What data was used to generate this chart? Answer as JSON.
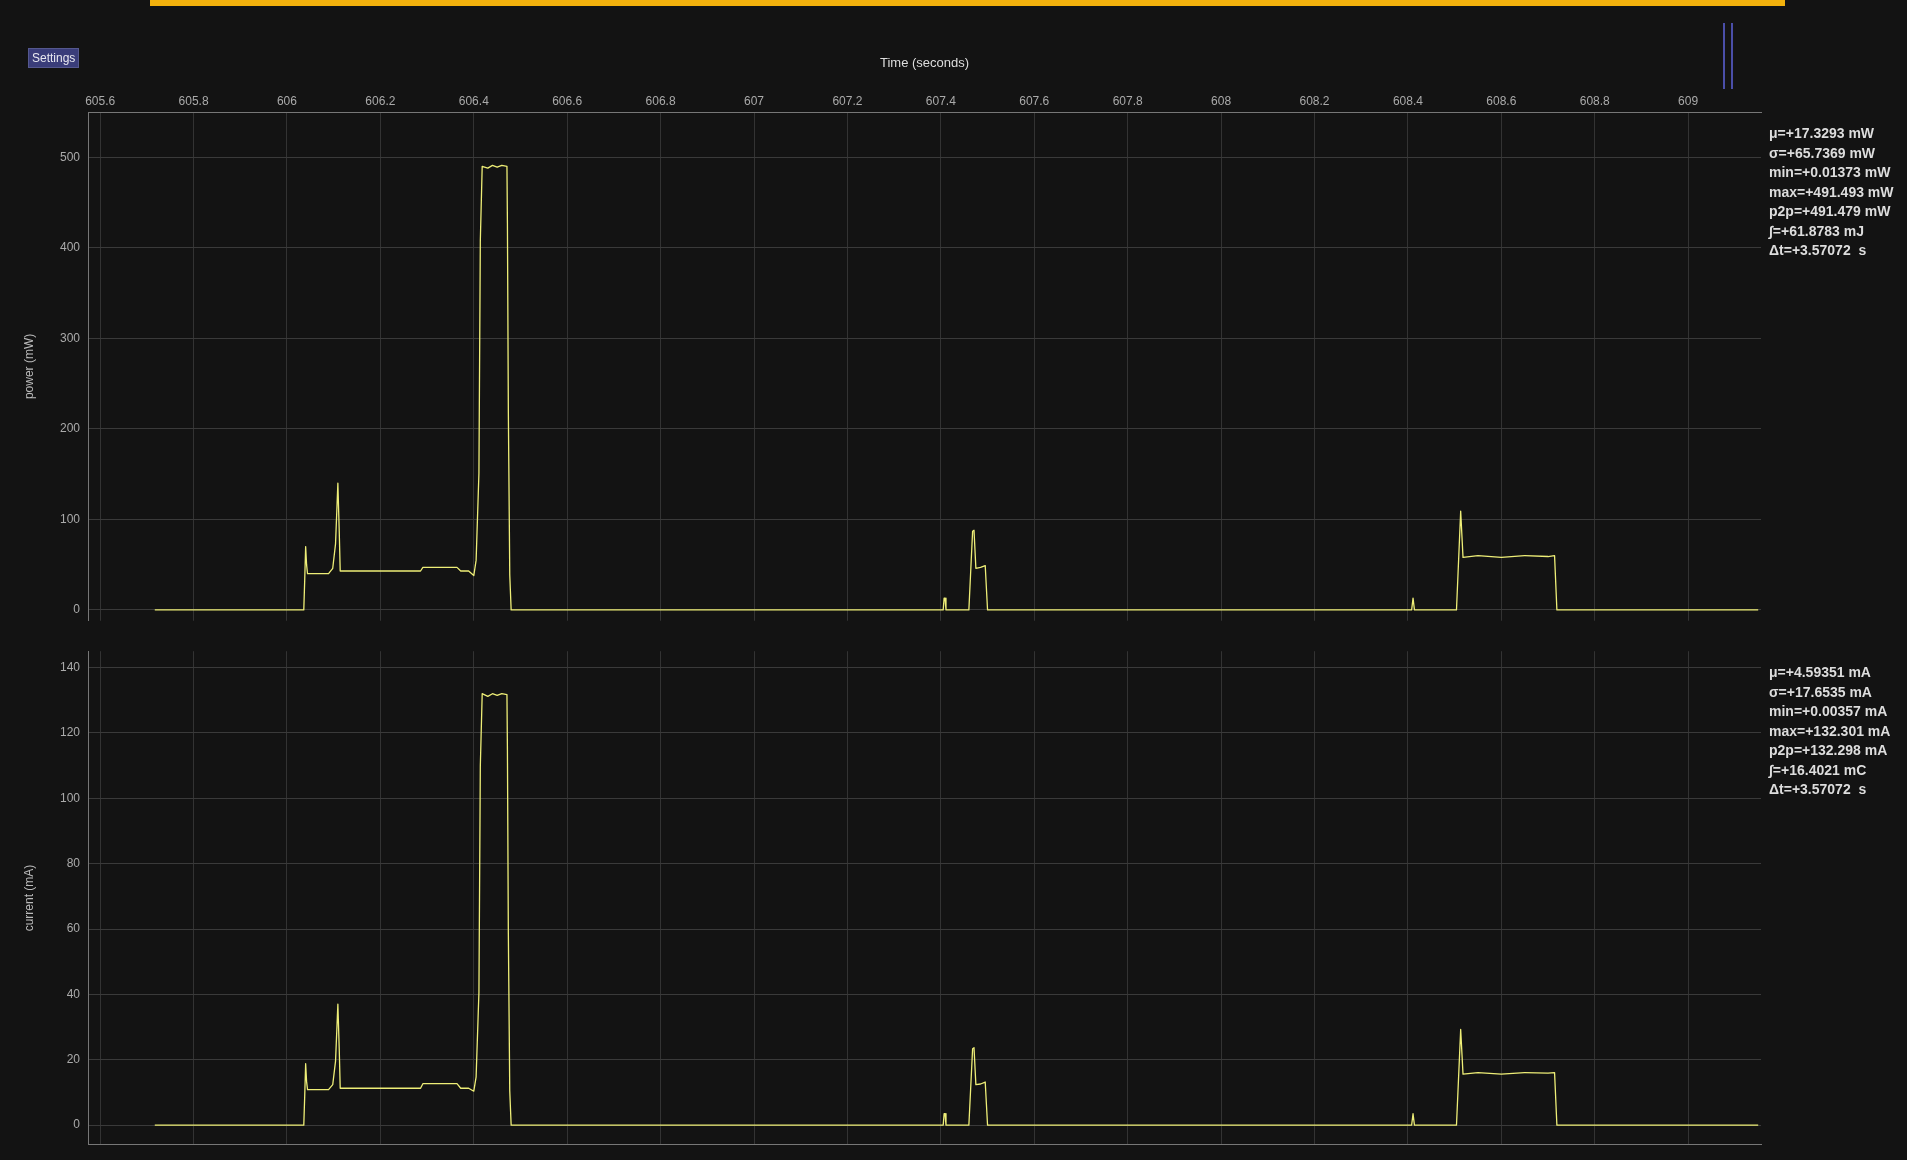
{
  "chart_data": [
    {
      "type": "line",
      "xlabel": "Time (seconds)",
      "ylabel": "power (mW)",
      "x": [
        605.717,
        606.036,
        606.038,
        606.04,
        606.042,
        606.044,
        606.089,
        606.098,
        606.104,
        606.109,
        606.112,
        606.114,
        606.286,
        606.291,
        606.364,
        606.372,
        606.389,
        606.4,
        606.405,
        606.411,
        606.414,
        606.418,
        606.43,
        606.44,
        606.45,
        606.46,
        606.471,
        606.472,
        606.474,
        606.477,
        606.48,
        606.49,
        607.405,
        607.407,
        607.409,
        607.411,
        607.46,
        607.468,
        607.471,
        607.475,
        607.485,
        607.495,
        607.5,
        608.408,
        608.411,
        608.414,
        608.504,
        608.513,
        608.518,
        608.55,
        608.6,
        608.65,
        608.7,
        608.714,
        608.719,
        609.15
      ],
      "series": [
        {
          "color": "#eeee77",
          "values": [
            0,
            0,
            33,
            70,
            50,
            40,
            40,
            46,
            73,
            140,
            85,
            43,
            43,
            47,
            47,
            43,
            43,
            38,
            55,
            151,
            408,
            490,
            488,
            491,
            489,
            491,
            490,
            427,
            218,
            39,
            0,
            0,
            0,
            13,
            13,
            0,
            0,
            87,
            88,
            46,
            47,
            49,
            0,
            0,
            13,
            0,
            0,
            109,
            58,
            60,
            58,
            60,
            59,
            60,
            0,
            0
          ]
        }
      ],
      "xlim": [
        605.574,
        609.156
      ],
      "xticks": [
        605.6,
        605.8,
        606,
        606.2,
        606.4,
        606.6,
        606.8,
        607,
        607.2,
        607.4,
        607.6,
        607.8,
        608,
        608.2,
        608.4,
        608.6,
        608.8,
        609
      ],
      "ylim": [
        -12,
        550
      ],
      "yticks": [
        0,
        100,
        200,
        300,
        400,
        500
      ],
      "grid": true,
      "annotations": [
        "Settings",
        "μ=+17.3293 mW",
        "σ=+65.7369 mW",
        "min=+0.01373 mW",
        "max=+491.493 mW",
        "p2p=+491.479 mW",
        "∫=+61.8783 mJ",
        "Δt=+3.57072  s"
      ]
    },
    {
      "type": "line",
      "ylabel": "current (mA)",
      "x": [
        605.717,
        606.036,
        606.038,
        606.04,
        606.042,
        606.044,
        606.089,
        606.098,
        606.104,
        606.109,
        606.112,
        606.114,
        606.286,
        606.291,
        606.364,
        606.372,
        606.389,
        606.4,
        606.405,
        606.411,
        606.414,
        606.418,
        606.43,
        606.44,
        606.45,
        606.46,
        606.471,
        606.472,
        606.474,
        606.477,
        606.48,
        606.49,
        607.405,
        607.407,
        607.409,
        607.411,
        607.46,
        607.468,
        607.471,
        607.475,
        607.485,
        607.495,
        607.5,
        608.408,
        608.411,
        608.414,
        608.504,
        608.513,
        608.518,
        608.55,
        608.6,
        608.65,
        608.7,
        608.714,
        608.719,
        609.15
      ],
      "series": [
        {
          "color": "#eeee77",
          "values": [
            0,
            0,
            8.9,
            18.8,
            13.4,
            10.9,
            10.9,
            12.4,
            19.6,
            37,
            22.8,
            11.3,
            11.3,
            12.7,
            12.7,
            11.3,
            11.3,
            10.4,
            14.8,
            40.6,
            110,
            132,
            131.2,
            132,
            131.5,
            132,
            131.7,
            114.8,
            58.6,
            10.5,
            0,
            0,
            0,
            3.5,
            3.5,
            0,
            0,
            23.4,
            23.7,
            12.4,
            12.6,
            13.2,
            0,
            0,
            3.5,
            0,
            0,
            29.3,
            15.6,
            16.1,
            15.6,
            16.1,
            15.9,
            16.1,
            0,
            0
          ]
        }
      ],
      "xlim": [
        605.574,
        609.156
      ],
      "xticks": [
        605.6,
        605.8,
        606,
        606.2,
        606.4,
        606.6,
        606.8,
        607,
        607.2,
        607.4,
        607.6,
        607.8,
        608,
        608.2,
        608.4,
        608.6,
        608.8,
        609
      ],
      "ylim": [
        -6,
        145
      ],
      "yticks": [
        0,
        20,
        40,
        60,
        80,
        100,
        120,
        140
      ],
      "grid": true,
      "tick_labels": "y",
      "annotations": [
        "μ=+4.59351 mA",
        "σ=+17.6535 mA",
        "min=+0.00357 mA",
        "max=+132.301 mA",
        "p2p=+132.298 mA",
        "∫=+16.4021 mC",
        "Δt=+3.57072  s"
      ]
    }
  ]
}
